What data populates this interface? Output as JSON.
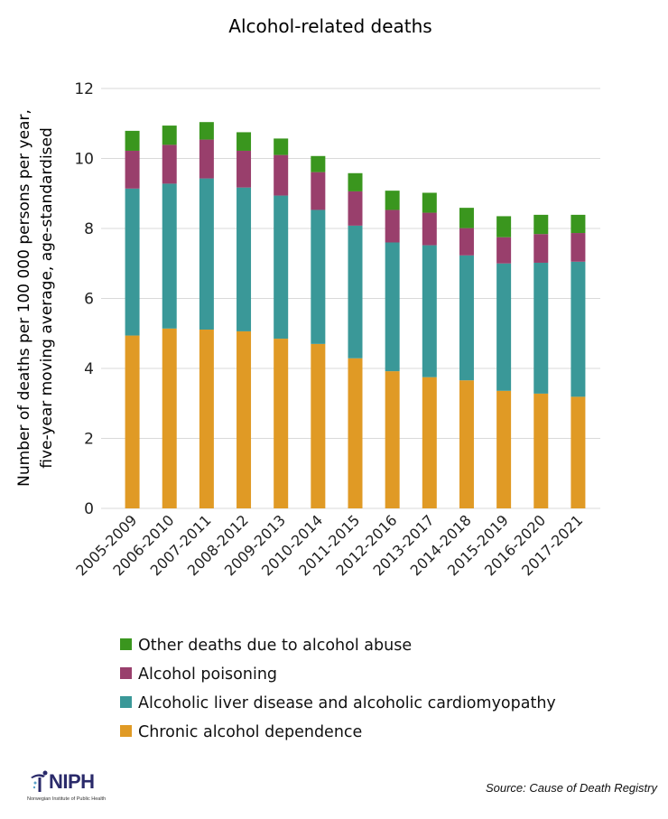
{
  "chart_data": {
    "type": "bar",
    "stacked": true,
    "title": "Alcohol-related deaths",
    "ylabel_lines": [
      "Number of deaths per 100 000 persons per year,",
      "five-year moving average, age-standardised"
    ],
    "xlabel": "",
    "ylim": [
      0,
      12
    ],
    "yticks": [
      0,
      2,
      4,
      6,
      8,
      10,
      12
    ],
    "grid": true,
    "legend_placement": "bottom",
    "categories": [
      "2005-2009",
      "2006-2010",
      "2007-2011",
      "2008-2012",
      "2009-2013",
      "2010-2014",
      "2011-2015",
      "2012-2016",
      "2013-2017",
      "2014-2018",
      "2015-2019",
      "2016-2020",
      "2017-2021"
    ],
    "series": [
      {
        "name": "Chronic alcohol dependence",
        "color": "#E09A25",
        "values": [
          4.94,
          5.14,
          5.11,
          5.06,
          4.85,
          4.7,
          4.29,
          3.92,
          3.75,
          3.66,
          3.36,
          3.28,
          3.19
        ]
      },
      {
        "name": "Alcoholic liver disease and alcoholic cardiomyopathy",
        "color": "#3A9898",
        "values": [
          4.2,
          4.14,
          4.32,
          4.11,
          4.09,
          3.83,
          3.79,
          3.68,
          3.77,
          3.57,
          3.64,
          3.74,
          3.86
        ]
      },
      {
        "name": "Alcohol poisoning",
        "color": "#993F6C",
        "values": [
          1.08,
          1.11,
          1.11,
          1.05,
          1.16,
          1.08,
          0.98,
          0.93,
          0.93,
          0.78,
          0.75,
          0.82,
          0.82
        ]
      },
      {
        "name": "Other deaths due to alcohol abuse",
        "color": "#3A961E",
        "values": [
          0.57,
          0.55,
          0.5,
          0.53,
          0.47,
          0.46,
          0.52,
          0.55,
          0.57,
          0.58,
          0.6,
          0.55,
          0.52
        ]
      }
    ]
  },
  "footer": {
    "source": "Source: Cause of Death Registry",
    "logo_text": "NIPH",
    "logo_subtext": "Norwegian Institute of Public Health"
  }
}
